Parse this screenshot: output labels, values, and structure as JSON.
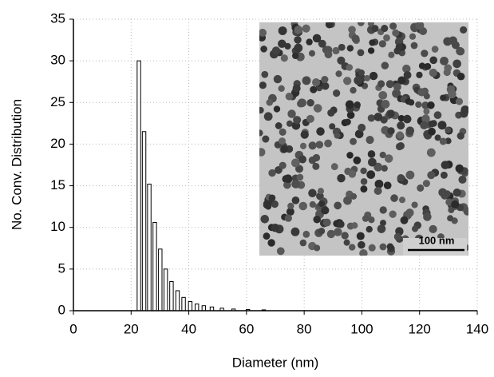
{
  "chart_data": {
    "type": "bar",
    "x_label": "Diameter (nm)",
    "y_label": "No. Conv. Distribution",
    "x": [
      22.7,
      24.5,
      26.3,
      28.2,
      30.1,
      32.0,
      34.0,
      36.1,
      38.2,
      40.5,
      42.8,
      45.2,
      48.0,
      51.5,
      55.5,
      60.5,
      66.0
    ],
    "values": [
      30,
      21.5,
      15.2,
      10.6,
      7.4,
      5.0,
      3.5,
      2.4,
      1.6,
      1.1,
      0.8,
      0.6,
      0.45,
      0.3,
      0.2,
      0.15,
      0.1
    ],
    "color": "#ffffff",
    "xlim": [
      0,
      140
    ],
    "xticks": [
      0,
      20,
      40,
      60,
      80,
      100,
      120,
      140
    ],
    "ylim": [
      0,
      35
    ],
    "yticks": [
      0,
      5,
      10,
      15,
      20,
      25,
      30,
      35
    ],
    "grid": true,
    "inset_scale_label": "100 nm"
  }
}
